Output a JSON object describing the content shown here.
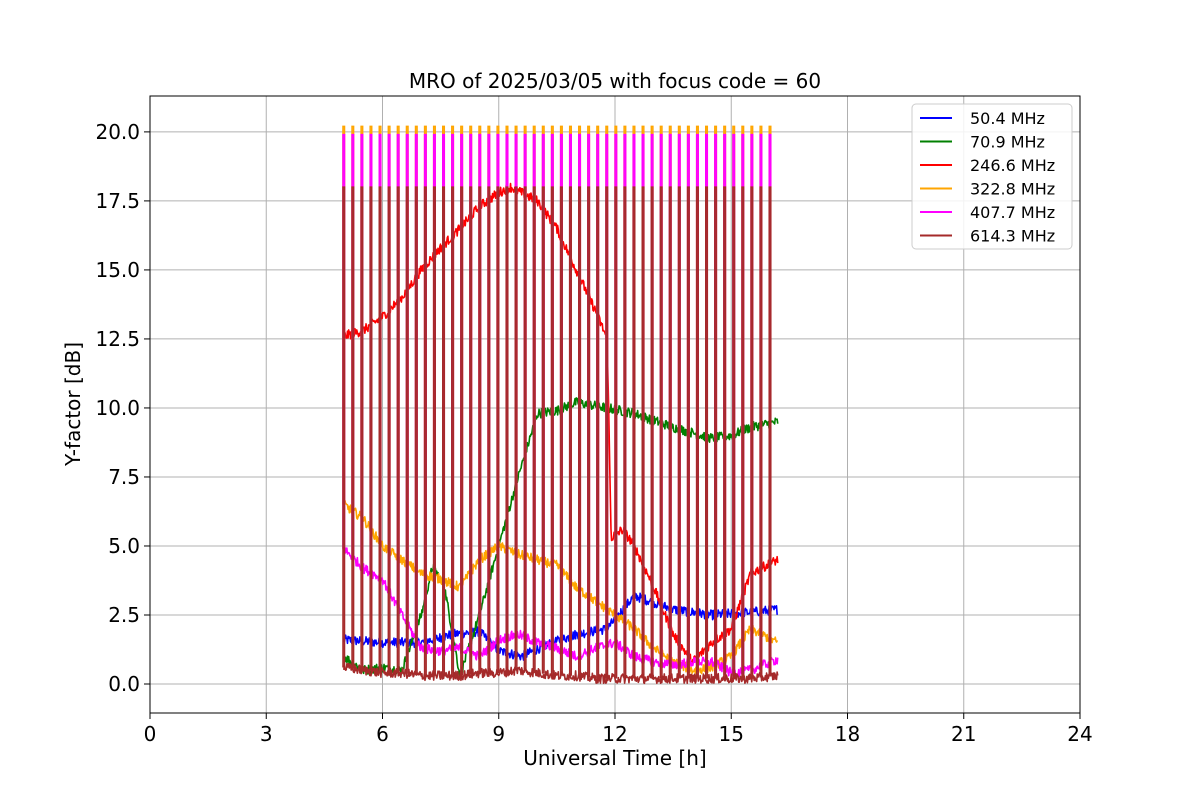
{
  "chart_data": {
    "type": "line",
    "title": "MRO of 2025/03/05 with focus code = 60",
    "xlabel": "Universal Time [h]",
    "ylabel": "Y-factor [dB]",
    "xlim": [
      0,
      24
    ],
    "ylim": [
      -1.05,
      21.3
    ],
    "xticks": [
      0,
      3,
      6,
      9,
      12,
      15,
      18,
      21,
      24
    ],
    "xtick_labels": [
      "0",
      "3",
      "6",
      "9",
      "12",
      "15",
      "18",
      "21",
      "24"
    ],
    "yticks": [
      0.0,
      2.5,
      5.0,
      7.5,
      10.0,
      12.5,
      15.0,
      17.5,
      20.0
    ],
    "ytick_labels": [
      "0.0",
      "2.5",
      "5.0",
      "7.5",
      "10.0",
      "12.5",
      "15.0",
      "17.5",
      "20.0"
    ],
    "grid": true,
    "legend_position": "top-right",
    "calibration_spikes": {
      "start": 5.0,
      "end": 16.0,
      "count": 48,
      "series_peaks": [
        {
          "name": "322.8 MHz",
          "value": 20.2
        },
        {
          "name": "407.7 MHz",
          "value": 19.9
        },
        {
          "name": "614.3 MHz",
          "value": 18.0
        }
      ]
    },
    "series": [
      {
        "name": "50.4 MHz",
        "legend_label": " 50.4 MHz",
        "color": "#0000ff",
        "x": [
          5.0,
          6.0,
          7.0,
          7.8,
          8.5,
          9.0,
          9.6,
          10.2,
          11.0,
          11.8,
          12.5,
          13.5,
          14.5,
          15.5,
          16.2
        ],
        "y": [
          1.6,
          1.5,
          1.5,
          1.8,
          1.9,
          1.2,
          1.0,
          1.4,
          1.8,
          2.0,
          3.2,
          2.7,
          2.5,
          2.6,
          2.7
        ]
      },
      {
        "name": "70.9 MHz",
        "legend_label": " 70.9 MHz",
        "color": "#008000",
        "x": [
          5.0,
          5.5,
          6.0,
          6.5,
          7.0,
          7.3,
          7.6,
          8.0,
          8.5,
          9.0,
          9.5,
          10.0,
          10.5,
          11.0,
          11.8,
          12.5,
          13.5,
          14.5,
          15.0,
          15.5,
          16.2
        ],
        "y": [
          1.0,
          0.5,
          0.6,
          0.5,
          2.5,
          4.3,
          3.5,
          0.3,
          2.5,
          5.0,
          7.5,
          9.8,
          9.9,
          10.2,
          10.0,
          9.8,
          9.3,
          8.9,
          9.0,
          9.3,
          9.5
        ]
      },
      {
        "name": "246.6 MHz",
        "legend_label": "246.6 MHz",
        "color": "#ff0000",
        "x": [
          5.0,
          5.5,
          6.0,
          6.5,
          7.0,
          7.5,
          8.0,
          8.5,
          9.0,
          9.3,
          10.0,
          10.5,
          11.0,
          11.5,
          11.8,
          11.9,
          12.2,
          12.5,
          13.0,
          13.5,
          14.0,
          14.5,
          15.0,
          15.5,
          16.2
        ],
        "y": [
          12.6,
          12.8,
          13.3,
          14.0,
          15.0,
          15.8,
          16.5,
          17.3,
          17.8,
          18.0,
          17.5,
          16.5,
          15.0,
          13.5,
          12.5,
          5.3,
          5.6,
          5.0,
          3.5,
          1.8,
          0.8,
          1.5,
          2.0,
          4.0,
          4.5
        ]
      },
      {
        "name": "322.8 MHz",
        "legend_label": "322.8 MHz",
        "color": "#ffa500",
        "x": [
          5.0,
          5.5,
          6.0,
          6.5,
          7.0,
          7.5,
          8.0,
          8.5,
          9.0,
          9.5,
          10.0,
          10.5,
          11.0,
          11.5,
          12.0,
          12.5,
          13.0,
          13.5,
          14.0,
          14.5,
          15.0,
          15.5,
          16.2
        ],
        "y": [
          6.5,
          6.0,
          5.0,
          4.5,
          4.0,
          3.8,
          3.5,
          4.5,
          5.0,
          4.7,
          4.5,
          4.3,
          3.5,
          3.0,
          2.5,
          2.0,
          1.3,
          0.8,
          0.5,
          0.6,
          1.0,
          2.0,
          1.5
        ]
      },
      {
        "name": "407.7 MHz",
        "legend_label": "407.7 MHz",
        "color": "#ff00ff",
        "x": [
          5.0,
          5.5,
          6.0,
          6.5,
          7.0,
          7.5,
          8.0,
          8.5,
          9.0,
          9.5,
          10.0,
          10.5,
          11.0,
          11.5,
          12.0,
          12.5,
          13.0,
          13.5,
          14.0,
          14.5,
          15.0,
          15.5,
          16.2
        ],
        "y": [
          4.9,
          4.2,
          3.8,
          2.5,
          1.3,
          1.2,
          1.3,
          1.0,
          1.6,
          1.8,
          1.5,
          1.3,
          1.0,
          1.3,
          1.5,
          1.0,
          0.8,
          0.7,
          0.8,
          0.8,
          0.4,
          0.5,
          0.9
        ]
      },
      {
        "name": "614.3 MHz",
        "legend_label": "614.3 MHz",
        "color": "#a52a2a",
        "x": [
          5.0,
          5.5,
          6.0,
          6.5,
          7.0,
          7.5,
          8.0,
          8.5,
          9.0,
          9.5,
          10.0,
          10.5,
          11.0,
          11.5,
          12.0,
          12.5,
          13.0,
          13.5,
          14.0,
          14.5,
          15.0,
          15.5,
          16.2
        ],
        "y": [
          0.6,
          0.5,
          0.4,
          0.4,
          0.3,
          0.3,
          0.3,
          0.4,
          0.4,
          0.5,
          0.4,
          0.3,
          0.3,
          0.2,
          0.2,
          0.2,
          0.2,
          0.2,
          0.2,
          0.2,
          0.2,
          0.2,
          0.3
        ]
      }
    ]
  }
}
